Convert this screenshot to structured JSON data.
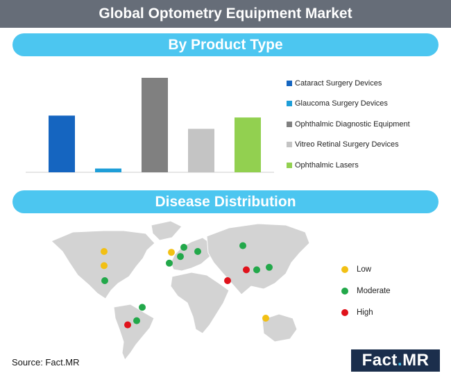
{
  "header": {
    "title": "Global Optometry Equipment Market"
  },
  "sections": {
    "product": "By Product Type",
    "disease": "Disease Distribution"
  },
  "chart_data": [
    {
      "type": "bar",
      "title": "By Product Type",
      "categories": [
        "Cataract Surgery Devices",
        "Glaucoma Surgery Devices",
        "Ophthalmic Diagnostic Equipment",
        "Vitreo Retinal Surgery Devices",
        "Ophthalmic Lasers"
      ],
      "values": [
        60,
        4,
        100,
        46,
        58
      ],
      "value_scale": "relative (no axis printed)",
      "colors": [
        "#1565c0",
        "#1e9ed8",
        "#808080",
        "#c4c4c4",
        "#92d050"
      ],
      "grid": false,
      "legend": "right"
    },
    {
      "type": "scatter",
      "title": "Disease Distribution",
      "legend": "right",
      "levels": [
        {
          "name": "Low",
          "color": "#f2c014"
        },
        {
          "name": "Moderate",
          "color": "#22a84a"
        },
        {
          "name": "High",
          "color": "#e0121b"
        }
      ],
      "points": [
        {
          "lon": -100,
          "lat": 55,
          "level": "Low"
        },
        {
          "lon": -100,
          "lat": 38,
          "level": "Low"
        },
        {
          "lon": -99,
          "lat": 20,
          "level": "Moderate"
        },
        {
          "lon": -45,
          "lat": -12,
          "level": "Moderate"
        },
        {
          "lon": -53,
          "lat": -28,
          "level": "Moderate"
        },
        {
          "lon": -66,
          "lat": -33,
          "level": "High"
        },
        {
          "lon": -3,
          "lat": 54,
          "level": "Low"
        },
        {
          "lon": -6,
          "lat": 41,
          "level": "Moderate"
        },
        {
          "lon": 10,
          "lat": 49,
          "level": "Moderate"
        },
        {
          "lon": 15,
          "lat": 60,
          "level": "Moderate"
        },
        {
          "lon": 35,
          "lat": 55,
          "level": "Moderate"
        },
        {
          "lon": 100,
          "lat": 62,
          "level": "Moderate"
        },
        {
          "lon": 78,
          "lat": 20,
          "level": "High"
        },
        {
          "lon": 105,
          "lat": 33,
          "level": "High"
        },
        {
          "lon": 120,
          "lat": 33,
          "level": "Moderate"
        },
        {
          "lon": 138,
          "lat": 36,
          "level": "Moderate"
        },
        {
          "lon": 133,
          "lat": -25,
          "level": "Low"
        }
      ]
    }
  ],
  "source": "Source: Fact.MR",
  "logo": {
    "text": "Fact",
    "dot": ".",
    "suffix": "MR"
  }
}
